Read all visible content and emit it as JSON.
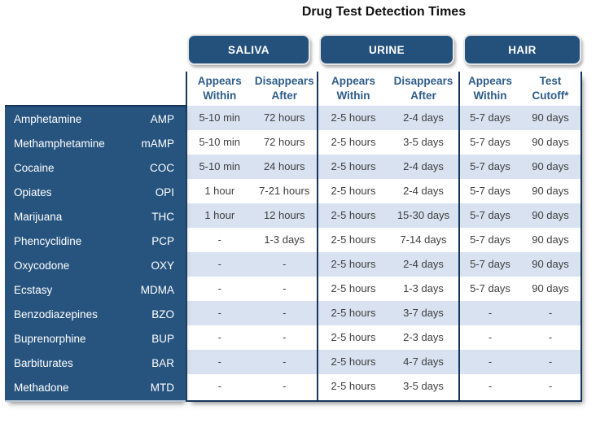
{
  "title": "Drug Test Detection Times",
  "colors": {
    "header_fill_blue": "#24517C",
    "panel_fill_blue": "#27547F",
    "border_navy": "#16365C",
    "stripe_light_blue": "#D9E2F0",
    "subheader_text_blue": "#2E5C8A",
    "data_text_gray": "#3F3F3F",
    "panel_text_white": "#FFFFFF"
  },
  "chart_data": {
    "type": "table",
    "title": "Drug Test Detection Times",
    "groups": [
      {
        "label": "SALIVA",
        "columns": [
          {
            "line1": "Appears",
            "line2": "Within"
          },
          {
            "line1": "Disappears",
            "line2": "After"
          }
        ]
      },
      {
        "label": "URINE",
        "columns": [
          {
            "line1": "Appears",
            "line2": "Within"
          },
          {
            "line1": "Disappears",
            "line2": "After"
          }
        ]
      },
      {
        "label": "HAIR",
        "columns": [
          {
            "line1": "Appears",
            "line2": "Within"
          },
          {
            "line1": "Test",
            "line2": "Cutoff*"
          }
        ]
      }
    ],
    "rows": [
      {
        "drug": "Amphetamine",
        "code": "AMP",
        "saliva_appears": "5-10 min",
        "saliva_disappears": "72 hours",
        "urine_appears": "2-5 hours",
        "urine_disappears": "2-4 days",
        "hair_appears": "5-7 days",
        "hair_cutoff": "90 days"
      },
      {
        "drug": "Methamphetamine",
        "code": "mAMP",
        "saliva_appears": "5-10 min",
        "saliva_disappears": "72 hours",
        "urine_appears": "2-5 hours",
        "urine_disappears": "3-5 days",
        "hair_appears": "5-7 days",
        "hair_cutoff": "90 days"
      },
      {
        "drug": "Cocaine",
        "code": "COC",
        "saliva_appears": "5-10 min",
        "saliva_disappears": "24 hours",
        "urine_appears": "2-5 hours",
        "urine_disappears": "2-4 days",
        "hair_appears": "5-7 days",
        "hair_cutoff": "90 days"
      },
      {
        "drug": "Opiates",
        "code": "OPI",
        "saliva_appears": "1 hour",
        "saliva_disappears": "7-21 hours",
        "urine_appears": "2-5 hours",
        "urine_disappears": "2-4 days",
        "hair_appears": "5-7 days",
        "hair_cutoff": "90 days"
      },
      {
        "drug": "Marijuana",
        "code": "THC",
        "saliva_appears": "1 hour",
        "saliva_disappears": "12 hours",
        "urine_appears": "2-5 hours",
        "urine_disappears": "15-30 days",
        "hair_appears": "5-7 days",
        "hair_cutoff": "90 days"
      },
      {
        "drug": "Phencyclidine",
        "code": "PCP",
        "saliva_appears": "-",
        "saliva_disappears": "1-3 days",
        "urine_appears": "2-5 hours",
        "urine_disappears": "7-14 days",
        "hair_appears": "5-7 days",
        "hair_cutoff": "90 days"
      },
      {
        "drug": "Oxycodone",
        "code": "OXY",
        "saliva_appears": "-",
        "saliva_disappears": "-",
        "urine_appears": "2-5 hours",
        "urine_disappears": "2-4 days",
        "hair_appears": "5-7 days",
        "hair_cutoff": "90 days"
      },
      {
        "drug": "Ecstasy",
        "code": "MDMA",
        "saliva_appears": "-",
        "saliva_disappears": "-",
        "urine_appears": "2-5 hours",
        "urine_disappears": "1-3 days",
        "hair_appears": "5-7 days",
        "hair_cutoff": "90 days"
      },
      {
        "drug": "Benzodiazepines",
        "code": "BZO",
        "saliva_appears": "-",
        "saliva_disappears": "-",
        "urine_appears": "2-5 hours",
        "urine_disappears": "3-7 days",
        "hair_appears": "-",
        "hair_cutoff": "-"
      },
      {
        "drug": "Buprenorphine",
        "code": "BUP",
        "saliva_appears": "-",
        "saliva_disappears": "-",
        "urine_appears": "2-5 hours",
        "urine_disappears": "2-3 days",
        "hair_appears": "-",
        "hair_cutoff": "-"
      },
      {
        "drug": "Barbiturates",
        "code": "BAR",
        "saliva_appears": "-",
        "saliva_disappears": "-",
        "urine_appears": "2-5 hours",
        "urine_disappears": "4-7 days",
        "hair_appears": "-",
        "hair_cutoff": "-"
      },
      {
        "drug": "Methadone",
        "code": "MTD",
        "saliva_appears": "-",
        "saliva_disappears": "-",
        "urine_appears": "2-5 hours",
        "urine_disappears": "3-5 days",
        "hair_appears": "-",
        "hair_cutoff": "-"
      }
    ]
  }
}
